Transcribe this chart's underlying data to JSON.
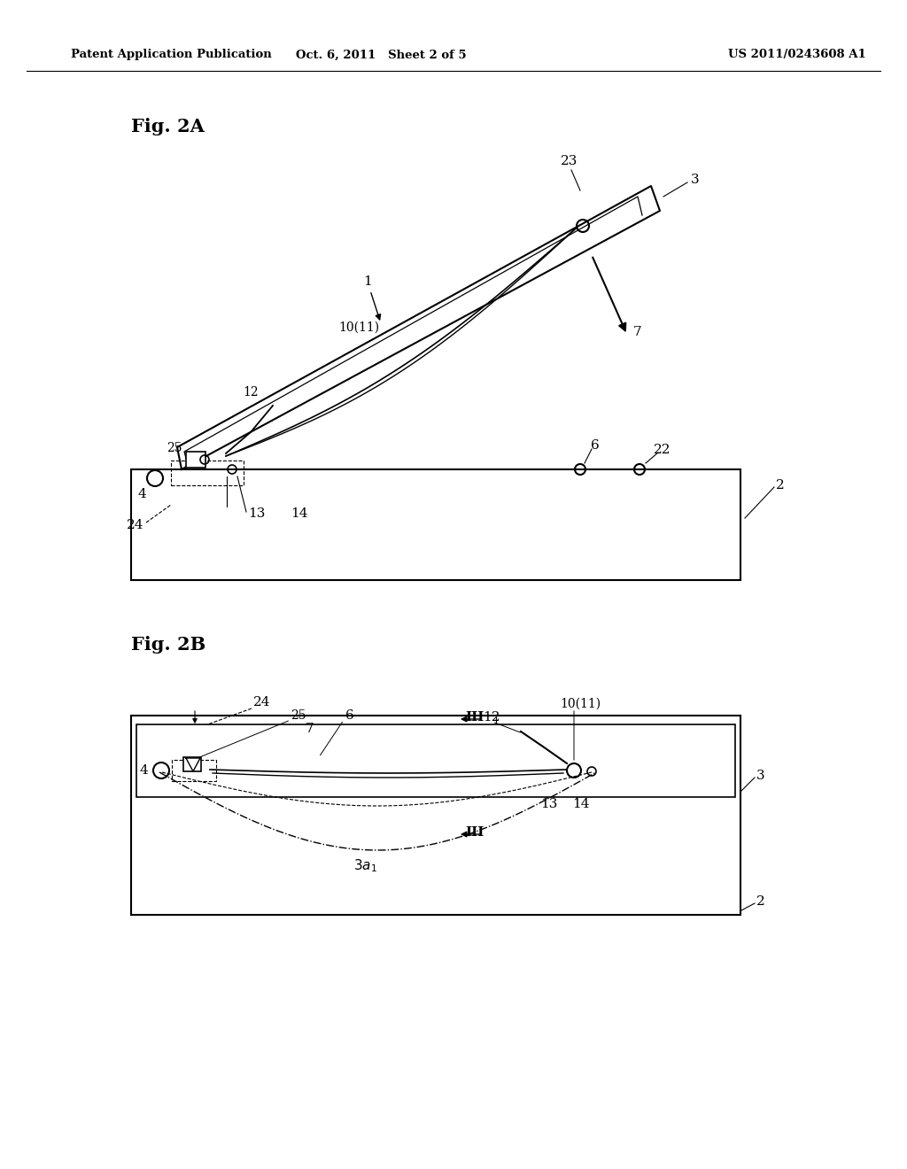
{
  "header_left": "Patent Application Publication",
  "header_center": "Oct. 6, 2011   Sheet 2 of 5",
  "header_right": "US 2011/0243608 A1",
  "fig2a_label": "Fig. 2A",
  "fig2b_label": "Fig. 2B",
  "bg_color": "#ffffff",
  "line_color": "#000000"
}
